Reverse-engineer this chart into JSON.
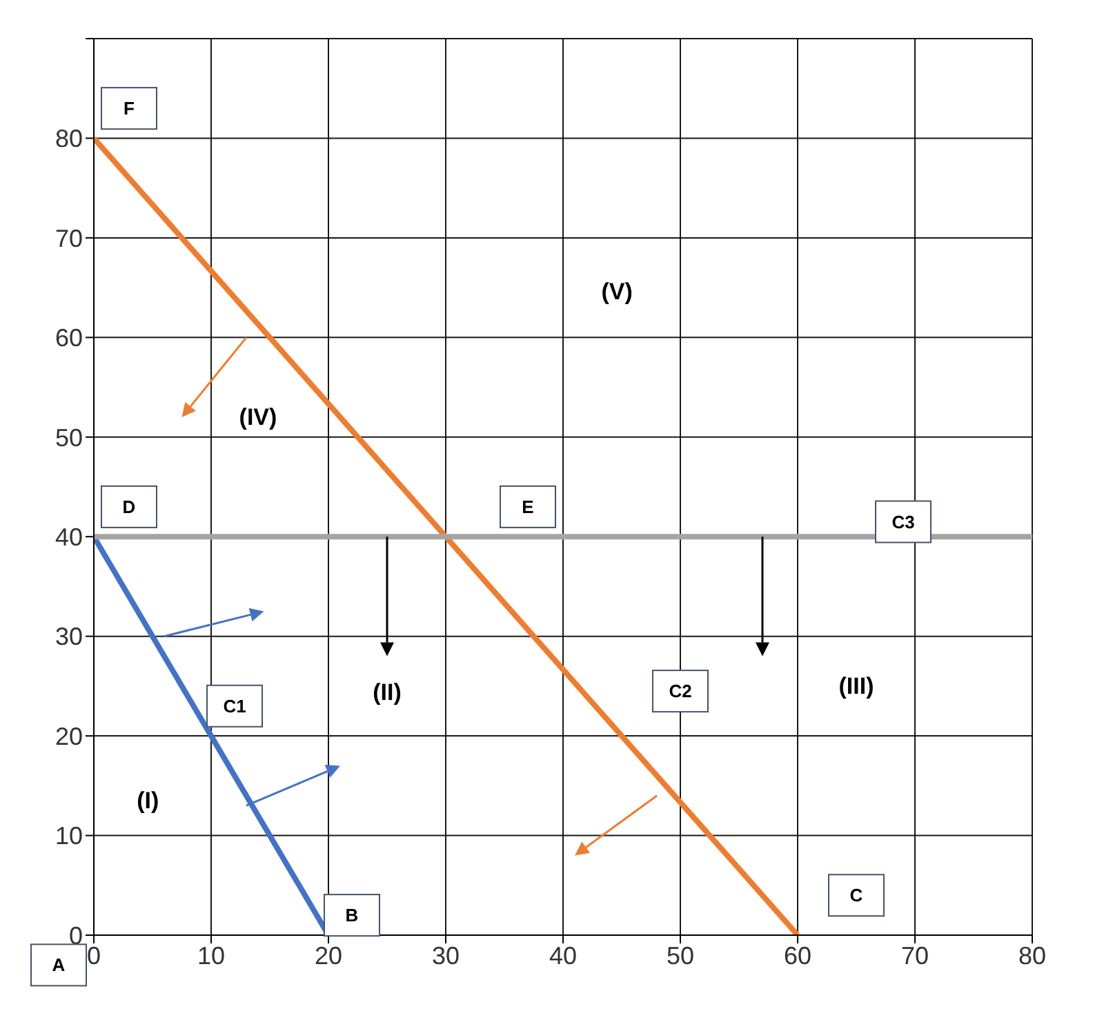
{
  "chart_data": {
    "type": "line",
    "series": [
      {
        "color": "#4472c4",
        "x": [
          0,
          20
        ],
        "values": [
          40,
          0
        ]
      },
      {
        "color": "#ed7d31",
        "x": [
          0,
          60
        ],
        "values": [
          80,
          0
        ]
      },
      {
        "color": "#a5a5a5",
        "x": [
          0,
          80
        ],
        "values": [
          40,
          40
        ]
      }
    ],
    "xlim": [
      0,
      80
    ],
    "xticks": [
      0,
      10,
      20,
      30,
      40,
      50,
      60,
      70,
      80
    ],
    "ylim": [
      0,
      90
    ],
    "yticks": [
      0,
      10,
      20,
      30,
      40,
      50,
      60,
      70,
      80,
      {
        "value": 90,
        "label": null
      }
    ],
    "grid": true,
    "marker": "none",
    "line_style": "solid",
    "legend": false,
    "annotations": [
      "A",
      "B",
      "C",
      "D",
      "E",
      "F",
      "C1",
      "C2",
      "C3",
      "(I)",
      "(II)",
      "(III)",
      "(IV)",
      "(V)"
    ]
  }
}
